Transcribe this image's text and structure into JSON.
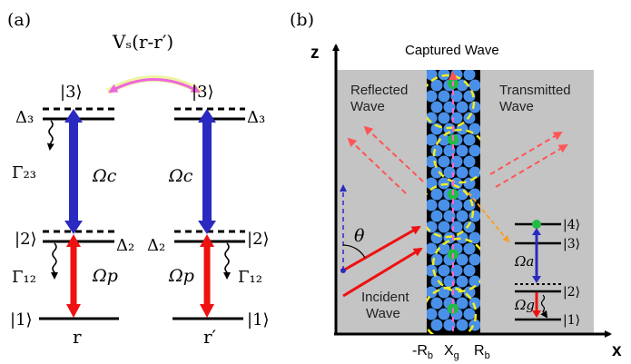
{
  "panel_a": {
    "label": "(a)",
    "interaction": "Vₛ(r-r′)",
    "left": {
      "level3": "|3⟩",
      "level2": "|2⟩",
      "level1": "|1⟩",
      "delta3": "Δ₃",
      "delta2": "Δ₂",
      "gamma23": "Γ₂₃",
      "gamma12": "Γ₁₂",
      "omega_c": "Ωc",
      "omega_p": "Ωp",
      "position": "r"
    },
    "right": {
      "level3": "|3⟩",
      "level2": "|2⟩",
      "level1": "|1⟩",
      "delta3": "Δ₃",
      "delta2": "Δ₂",
      "gamma12": "Γ₁₂",
      "omega_c": "Ωc",
      "omega_p": "Ωp",
      "position": "r′"
    }
  },
  "panel_b": {
    "label": "(b)",
    "axis_z": "z",
    "axis_x": "x",
    "captured": "Captured Wave",
    "reflected": [
      "Reflected",
      "Wave"
    ],
    "transmitted": [
      "Transmitted",
      "Wave"
    ],
    "incident": [
      "Incident",
      "Wave"
    ],
    "theta": "θ",
    "tick_left": "-R",
    "tick_left_sub": "b",
    "tick_mid": "X",
    "tick_mid_sub": "g",
    "tick_right": "R",
    "tick_right_sub": "b",
    "inset": {
      "level4": "|4⟩",
      "level3": "|3⟩",
      "level2": "|2⟩",
      "level1": "|1⟩",
      "omega_a": "Ωa",
      "omega_g": "Ωg"
    }
  },
  "colors": {
    "blue_arrow": "#2a2ac0",
    "red_arrow": "#ee1111",
    "magenta": "#ee66dd",
    "gray_region": "#c4c4c4",
    "atom_blue": "#4a90e8",
    "atom_green": "#22bb44",
    "yellow_dash": "#eeee22",
    "pink_dash": "#ff5555"
  }
}
